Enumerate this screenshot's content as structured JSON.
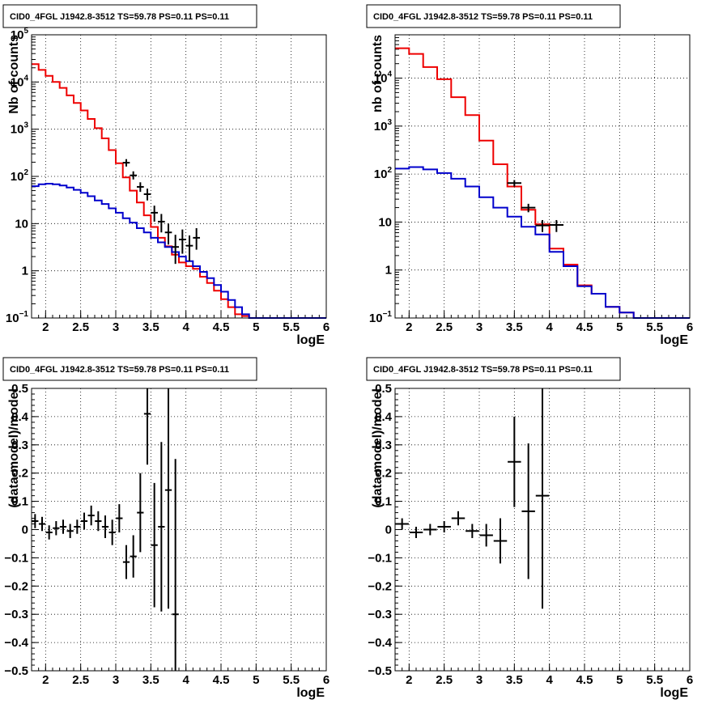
{
  "chart_data": [
    {
      "type": "line",
      "panel": "top-left",
      "title": "CID0_4FGL J1942.8-3512 TS=59.78 PS=0.11 PS=0.11",
      "xlabel": "logE",
      "ylabel": "Nb of counts",
      "xlim": [
        1.8,
        6
      ],
      "ylim": [
        0.1,
        100000
      ],
      "yscale": "log",
      "grid": true,
      "x_ticks": [
        "2",
        "2.5",
        "3",
        "3.5",
        "4",
        "4.5",
        "5",
        "5.5",
        "6"
      ],
      "y_ticks": [
        {
          "base": "10",
          "exp": "−1",
          "value": 0.1
        },
        {
          "base": "1",
          "exp": "",
          "value": 1
        },
        {
          "base": "10",
          "exp": "",
          "value": 10
        },
        {
          "base": "10",
          "exp": "2",
          "value": 100
        },
        {
          "base": "10",
          "exp": "3",
          "value": 1000
        },
        {
          "base": "10",
          "exp": "4",
          "value": 10000
        },
        {
          "base": "10",
          "exp": "5",
          "value": 100000
        }
      ],
      "bin_width": 0.1,
      "series": [
        {
          "color": "#ee0000",
          "style": "step",
          "x": [
            1.85,
            1.95,
            2.05,
            2.15,
            2.25,
            2.35,
            2.45,
            2.55,
            2.65,
            2.75,
            2.85,
            2.95,
            3.05,
            3.15,
            3.25,
            3.35,
            3.45,
            3.55,
            3.65,
            3.75,
            3.85,
            3.95,
            4.05,
            4.15,
            4.25,
            4.35,
            4.45,
            4.55,
            4.65,
            4.75,
            4.85,
            4.95,
            5.05,
            5.15,
            5.25,
            5.35,
            5.45,
            5.55,
            5.65,
            5.75,
            5.85,
            5.95
          ],
          "y": [
            24000,
            18000,
            13500,
            10000,
            7500,
            5200,
            3600,
            2500,
            1650,
            1050,
            640,
            360,
            190,
            95,
            50,
            28,
            15,
            8.5,
            5,
            3.3,
            2.2,
            1.5,
            1.25,
            1.1,
            0.75,
            0.55,
            0.38,
            0.25,
            0.17,
            0.12,
            0.11,
            0.1,
            0.1,
            0.1,
            0.1,
            0.1,
            0.1,
            0.1,
            0.1,
            0.1,
            0.1,
            0.1
          ]
        },
        {
          "color": "#0000cc",
          "style": "step",
          "x": [
            1.85,
            1.95,
            2.05,
            2.15,
            2.25,
            2.35,
            2.45,
            2.55,
            2.65,
            2.75,
            2.85,
            2.95,
            3.05,
            3.15,
            3.25,
            3.35,
            3.45,
            3.55,
            3.65,
            3.75,
            3.85,
            3.95,
            4.05,
            4.15,
            4.25,
            4.35,
            4.45,
            4.55,
            4.65,
            4.75,
            4.85,
            4.95,
            5.05,
            5.15,
            5.25,
            5.35,
            5.45,
            5.55,
            5.65,
            5.75,
            5.85,
            5.95
          ],
          "y": [
            62,
            68,
            70,
            68,
            64,
            58,
            52,
            45,
            38,
            31,
            26,
            21,
            17,
            13,
            10.5,
            8,
            6.5,
            5,
            4,
            3.2,
            2.5,
            2,
            1.6,
            1.25,
            0.95,
            0.7,
            0.5,
            0.36,
            0.24,
            0.17,
            0.12,
            0.1,
            0.1,
            0.1,
            0.1,
            0.1,
            0.1,
            0.1,
            0.1,
            0.1,
            0.1,
            0.1
          ]
        },
        {
          "color": "#000000",
          "style": "points",
          "x": [
            3.15,
            3.25,
            3.35,
            3.45,
            3.55,
            3.65,
            3.75,
            3.85,
            3.95,
            4.05,
            4.15
          ],
          "y": [
            195,
            105,
            60,
            42,
            17,
            11,
            6.5,
            3.2,
            4.6,
            3.4,
            5
          ],
          "y_low": [
            162,
            86,
            47,
            31,
            11,
            6.5,
            3.6,
            1.4,
            2.3,
            1.6,
            2.8
          ],
          "y_high": [
            232,
            128,
            75,
            55,
            24,
            16,
            10,
            5.8,
            7.5,
            5.6,
            8
          ]
        }
      ]
    },
    {
      "type": "line",
      "panel": "top-right",
      "title": "CID0_4FGL J1942.8-3512 TS=59.78 PS=0.11 PS=0.11",
      "xlabel": "logE",
      "ylabel": "nb of counts",
      "xlim": [
        1.8,
        6
      ],
      "ylim": [
        0.1,
        80000
      ],
      "yscale": "log",
      "grid": true,
      "x_ticks": [
        "2",
        "2.5",
        "3",
        "3.5",
        "4",
        "4.5",
        "5",
        "5.5",
        "6"
      ],
      "y_ticks": [
        {
          "base": "10",
          "exp": "−1",
          "value": 0.1
        },
        {
          "base": "1",
          "exp": "",
          "value": 1
        },
        {
          "base": "10",
          "exp": "",
          "value": 10
        },
        {
          "base": "10",
          "exp": "2",
          "value": 100
        },
        {
          "base": "10",
          "exp": "3",
          "value": 1000
        },
        {
          "base": "10",
          "exp": "4",
          "value": 10000
        }
      ],
      "bin_width": 0.2,
      "series": [
        {
          "color": "#ee0000",
          "style": "step",
          "x": [
            1.9,
            2.1,
            2.3,
            2.5,
            2.7,
            2.9,
            3.1,
            3.3,
            3.5,
            3.7,
            3.9,
            4.1,
            4.3,
            4.5,
            4.7,
            4.9,
            5.1,
            5.3,
            5.5,
            5.7,
            5.9
          ],
          "y": [
            42000,
            32000,
            17000,
            9500,
            4000,
            1700,
            500,
            160,
            55,
            18,
            9,
            2.8,
            1.3,
            0.48,
            0.32,
            0.17,
            0.13,
            0.1,
            0.1,
            0.1,
            0.1
          ]
        },
        {
          "color": "#0000cc",
          "style": "step",
          "x": [
            1.9,
            2.1,
            2.3,
            2.5,
            2.7,
            2.9,
            3.1,
            3.3,
            3.5,
            3.7,
            3.9,
            4.1,
            4.3,
            4.5,
            4.7,
            4.9,
            5.1,
            5.3,
            5.5,
            5.7,
            5.9
          ],
          "y": [
            130,
            140,
            125,
            105,
            80,
            55,
            33,
            20,
            13,
            8,
            5.5,
            2.4,
            1.2,
            0.46,
            0.32,
            0.17,
            0.13,
            0.1,
            0.1,
            0.1,
            0.1
          ]
        },
        {
          "color": "#000000",
          "style": "points",
          "x": [
            3.5,
            3.7,
            3.9,
            4.1
          ],
          "y": [
            65,
            20,
            8.5,
            8.7
          ],
          "y_low": [
            55,
            16,
            6.2,
            6.2
          ],
          "y_high": [
            75,
            24,
            11,
            11
          ]
        }
      ]
    },
    {
      "type": "scatter",
      "panel": "bottom-left",
      "title": "CID0_4FGL J1942.8-3512 TS=59.78 PS=0.11 PS=0.11",
      "xlabel": "logE",
      "ylabel": "(data-model)/model",
      "xlim": [
        1.8,
        6
      ],
      "ylim": [
        -0.5,
        0.5
      ],
      "grid": true,
      "x_ticks": [
        "2",
        "2.5",
        "3",
        "3.5",
        "4",
        "4.5",
        "5",
        "5.5",
        "6"
      ],
      "y_ticks": [
        "−0.5",
        "−0.4",
        "−0.3",
        "−0.2",
        "−0.1",
        "0",
        "0.1",
        "0.2",
        "0.3",
        "0.4",
        "0.5"
      ],
      "bin_width": 0.1,
      "points": {
        "x": [
          1.85,
          1.95,
          2.05,
          2.15,
          2.25,
          2.35,
          2.45,
          2.55,
          2.65,
          2.75,
          2.85,
          2.95,
          3.05,
          3.15,
          3.25,
          3.35,
          3.45,
          3.55,
          3.65,
          3.75,
          3.85
        ],
        "y": [
          0.03,
          0.02,
          -0.01,
          0.005,
          0.01,
          -0.005,
          0.01,
          0.03,
          0.05,
          0.03,
          0.01,
          -0.01,
          0.04,
          -0.115,
          -0.095,
          0.06,
          0.41,
          -0.055,
          0.01,
          0.14,
          -0.3
        ],
        "err": [
          0.025,
          0.025,
          0.025,
          0.025,
          0.025,
          0.025,
          0.025,
          0.03,
          0.035,
          0.035,
          0.04,
          0.045,
          0.05,
          0.06,
          0.075,
          0.14,
          0.18,
          0.22,
          0.3,
          0.42,
          0.55
        ]
      }
    },
    {
      "type": "scatter",
      "panel": "bottom-right",
      "title": "CID0_4FGL J1942.8-3512 TS=59.78 PS=0.11 PS=0.11",
      "xlabel": "logE",
      "ylabel": "(data-model)/model",
      "xlim": [
        1.8,
        6
      ],
      "ylim": [
        -0.5,
        0.5
      ],
      "grid": true,
      "x_ticks": [
        "2",
        "2.5",
        "3",
        "3.5",
        "4",
        "4.5",
        "5",
        "5.5",
        "6"
      ],
      "y_ticks": [
        "−0.5",
        "−0.4",
        "−0.3",
        "−0.2",
        "−0.1",
        "0",
        "0.1",
        "0.2",
        "0.3",
        "0.4",
        "0.5"
      ],
      "bin_width": 0.2,
      "points": {
        "x": [
          1.9,
          2.1,
          2.3,
          2.5,
          2.7,
          2.9,
          3.1,
          3.3,
          3.5,
          3.7,
          3.9
        ],
        "y": [
          0.02,
          -0.01,
          0.0,
          0.01,
          0.04,
          -0.005,
          -0.02,
          -0.04,
          0.24,
          0.065,
          0.12
        ],
        "err": [
          0.02,
          0.02,
          0.02,
          0.02,
          0.025,
          0.025,
          0.04,
          0.08,
          0.16,
          0.24,
          0.4
        ]
      }
    }
  ]
}
